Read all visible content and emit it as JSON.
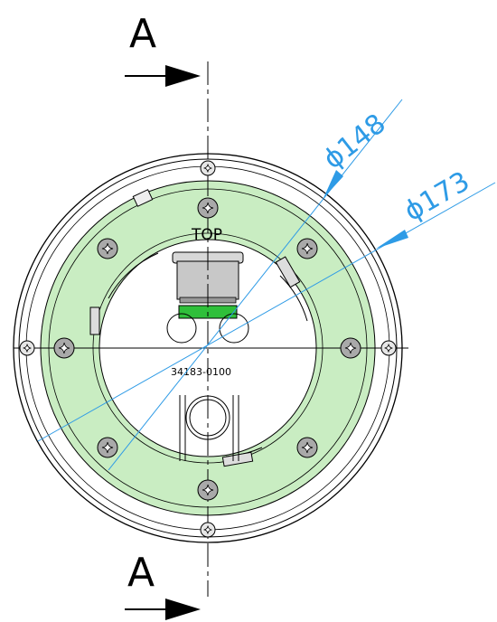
{
  "section_marker": {
    "top_label": "A",
    "bottom_label": "A"
  },
  "dimensions": {
    "inner_diameter": "ϕ148",
    "outer_diameter": "ϕ173"
  },
  "labels": {
    "orientation": "TOP",
    "part_number": "34183-0100"
  },
  "colors": {
    "ring_fill": "#c9edc2",
    "dimension_line": "#2e9be6",
    "connector_green": "#2fbf3a",
    "connector_gray": "#c8c8c8",
    "line": "#000000"
  },
  "icons": [
    "section-arrow-icon",
    "screw-icon"
  ]
}
